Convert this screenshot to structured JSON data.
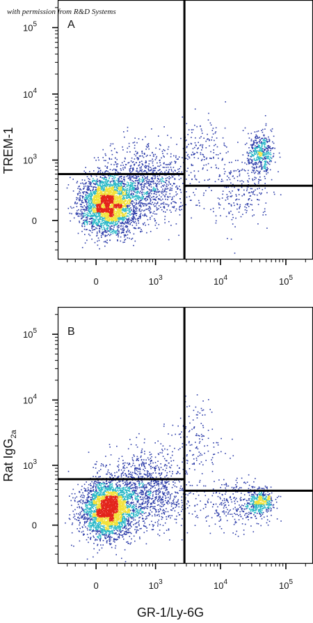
{
  "watermark": "with permission from R&D Systems",
  "shared_xlabel": "GR-1/Ly-6G",
  "colors": {
    "low": "#2a3aa8",
    "mid": "#2bb9c8",
    "high": "#f3e23a",
    "peak": "#e3241b",
    "gate": "#000000"
  },
  "chart_data": [
    {
      "type": "scatter",
      "panel_label": "A",
      "ylabel": "TREM-1",
      "ylabel_sub": "",
      "x_ticks": [
        {
          "value": 0,
          "base": "0",
          "exp": ""
        },
        {
          "value": 1000,
          "base": "10",
          "exp": "3"
        },
        {
          "value": 10000,
          "base": "10",
          "exp": "4"
        },
        {
          "value": 100000,
          "base": "10",
          "exp": "5"
        }
      ],
      "y_ticks": [
        {
          "value": 0,
          "base": "0",
          "exp": ""
        },
        {
          "value": 1000,
          "base": "10",
          "exp": "3"
        },
        {
          "value": 10000,
          "base": "10",
          "exp": "4"
        },
        {
          "value": 100000,
          "base": "10",
          "exp": "5"
        }
      ],
      "gates": {
        "x_split": 2800,
        "y_left": 600,
        "y_right": 380
      },
      "populations": [
        {
          "x": 100,
          "y": 150,
          "sx": 0.1,
          "sy": 0.11,
          "n": 3000
        },
        {
          "x": 700,
          "y": 400,
          "sx": 0.16,
          "sy": 0.15,
          "n": 1100
        },
        {
          "x": 5000,
          "y": 1500,
          "sx": 0.12,
          "sy": 0.13,
          "n": 150
        },
        {
          "x": 20000,
          "y": 350,
          "sx": 0.12,
          "sy": 0.14,
          "n": 250
        },
        {
          "x": 40000,
          "y": 1300,
          "sx": 0.05,
          "sy": 0.08,
          "n": 450
        }
      ]
    },
    {
      "type": "scatter",
      "panel_label": "B",
      "ylabel": "Rat IgG",
      "ylabel_sub": "2a",
      "x_ticks": [
        {
          "value": 0,
          "base": "0",
          "exp": ""
        },
        {
          "value": 1000,
          "base": "10",
          "exp": "3"
        },
        {
          "value": 10000,
          "base": "10",
          "exp": "4"
        },
        {
          "value": 100000,
          "base": "10",
          "exp": "5"
        }
      ],
      "y_ticks": [
        {
          "value": 0,
          "base": "0",
          "exp": ""
        },
        {
          "value": 1000,
          "base": "10",
          "exp": "3"
        },
        {
          "value": 10000,
          "base": "10",
          "exp": "4"
        },
        {
          "value": 100000,
          "base": "10",
          "exp": "5"
        }
      ],
      "gates": {
        "x_split": 2800,
        "y_left": 600,
        "y_right": 380
      },
      "populations": [
        {
          "x": 100,
          "y": 150,
          "sx": 0.1,
          "sy": 0.11,
          "n": 3000
        },
        {
          "x": 700,
          "y": 400,
          "sx": 0.16,
          "sy": 0.15,
          "n": 1100
        },
        {
          "x": 4000,
          "y": 2500,
          "sx": 0.11,
          "sy": 0.15,
          "n": 140
        },
        {
          "x": 15000,
          "y": 200,
          "sx": 0.14,
          "sy": 0.1,
          "n": 280
        },
        {
          "x": 40000,
          "y": 230,
          "sx": 0.05,
          "sy": 0.05,
          "n": 450
        }
      ]
    }
  ]
}
